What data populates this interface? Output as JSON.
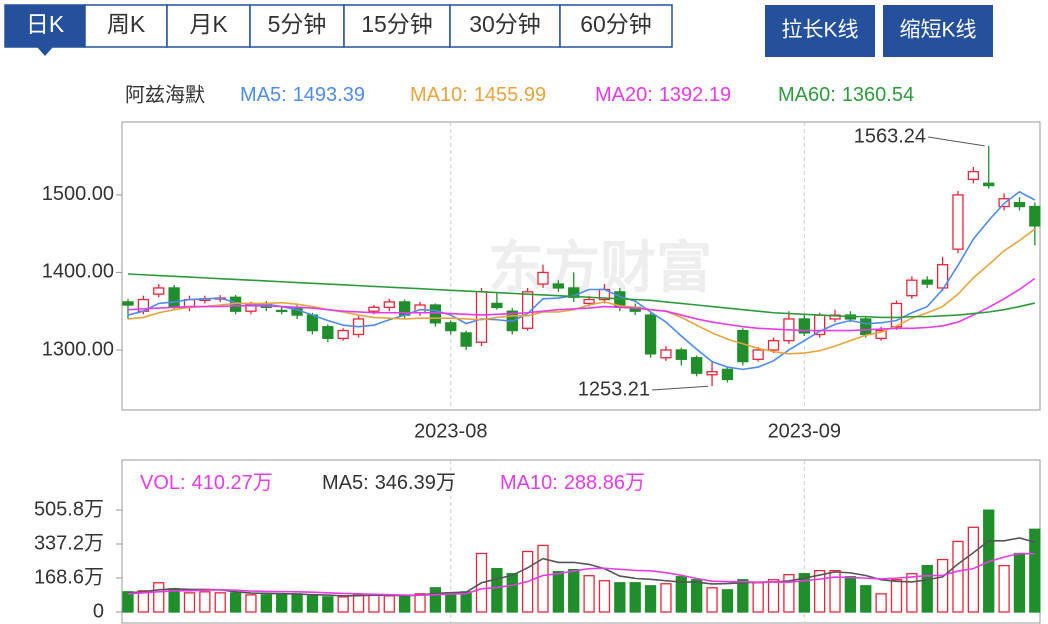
{
  "tabs": {
    "items": [
      "日K",
      "周K",
      "月K",
      "5分钟",
      "15分钟",
      "30分钟",
      "60分钟"
    ],
    "selected": 0
  },
  "buttons": [
    "拉长K线",
    "缩短K线"
  ],
  "watermark": "东方财富",
  "chart_data": [
    {
      "type": "candlestick",
      "title": "阿兹海默",
      "categories": [
        null,
        null,
        null,
        null,
        null,
        null,
        null,
        null,
        null,
        null,
        null,
        null,
        null,
        null,
        null,
        null,
        null,
        null,
        null,
        null,
        null,
        "2023-08",
        null,
        null,
        null,
        null,
        null,
        null,
        null,
        null,
        null,
        null,
        null,
        null,
        null,
        null,
        null,
        null,
        null,
        null,
        null,
        null,
        null,
        null,
        "2023-09",
        null,
        null,
        null,
        null,
        null,
        null,
        null,
        null,
        null,
        null,
        null,
        null,
        null,
        null,
        null
      ],
      "open": [
        1362,
        1350,
        1372,
        1380,
        1355,
        1364,
        1366,
        1368,
        1350,
        1360,
        1351,
        1355,
        1345,
        1330,
        1315,
        1320,
        1350,
        1355,
        1362,
        1348,
        1358,
        1335,
        1322,
        1310,
        1360,
        1350,
        1328,
        1385,
        1385,
        1380,
        1360,
        1365,
        1375,
        1355,
        1345,
        1290,
        1300,
        1290,
        1268,
        1275,
        1325,
        1288,
        1300,
        1312,
        1340,
        1320,
        1340,
        1345,
        1340,
        1315,
        1330,
        1370,
        1390,
        1380,
        1430,
        1520,
        1515,
        1485,
        1490,
        1485
      ],
      "high": [
        1366,
        1370,
        1385,
        1384,
        1370,
        1370,
        1371,
        1371,
        1362,
        1363,
        1356,
        1358,
        1348,
        1333,
        1328,
        1344,
        1358,
        1366,
        1365,
        1362,
        1360,
        1338,
        1325,
        1380,
        1375,
        1354,
        1380,
        1410,
        1390,
        1400,
        1370,
        1385,
        1380,
        1360,
        1348,
        1305,
        1303,
        1293,
        1285,
        1278,
        1328,
        1304,
        1316,
        1350,
        1345,
        1348,
        1352,
        1350,
        1343,
        1330,
        1364,
        1395,
        1395,
        1420,
        1505,
        1536,
        1563.24,
        1502,
        1497,
        1490
      ],
      "low": [
        1340,
        1346,
        1368,
        1352,
        1350,
        1360,
        1362,
        1346,
        1346,
        1350,
        1346,
        1340,
        1320,
        1310,
        1312,
        1316,
        1346,
        1350,
        1340,
        1344,
        1330,
        1320,
        1300,
        1305,
        1352,
        1320,
        1325,
        1380,
        1375,
        1362,
        1356,
        1360,
        1350,
        1345,
        1290,
        1286,
        1280,
        1266,
        1253.21,
        1258,
        1280,
        1285,
        1296,
        1308,
        1318,
        1316,
        1336,
        1336,
        1316,
        1312,
        1326,
        1366,
        1380,
        1376,
        1425,
        1515,
        1508,
        1480,
        1480,
        1435
      ],
      "close": [
        1358,
        1365,
        1380,
        1355,
        1365,
        1366,
        1367,
        1350,
        1358,
        1355,
        1350,
        1345,
        1325,
        1315,
        1325,
        1340,
        1355,
        1362,
        1345,
        1358,
        1335,
        1325,
        1305,
        1375,
        1355,
        1325,
        1375,
        1400,
        1380,
        1368,
        1365,
        1378,
        1355,
        1350,
        1295,
        1300,
        1288,
        1270,
        1272,
        1262,
        1285,
        1300,
        1312,
        1340,
        1322,
        1345,
        1345,
        1340,
        1320,
        1325,
        1360,
        1390,
        1385,
        1410,
        1500,
        1530,
        1512,
        1495,
        1485,
        1460
      ],
      "up_color": "#e8263a",
      "down_color": "#1f8e2b",
      "series": [
        {
          "name": "MA5:",
          "color": "#4e8bef",
          "values": [
            1345,
            1350,
            1360,
            1362,
            1365,
            1366,
            1367,
            1361,
            1359,
            1359,
            1356,
            1352,
            1345,
            1338,
            1332,
            1330,
            1332,
            1339,
            1345,
            1352,
            1351,
            1345,
            1334,
            1340,
            1339,
            1337,
            1347,
            1366,
            1367,
            1370,
            1378,
            1378,
            1369,
            1363,
            1349,
            1336,
            1318,
            1301,
            1285,
            1278,
            1275,
            1278,
            1286,
            1300,
            1312,
            1324,
            1333,
            1338,
            1334,
            1335,
            1338,
            1348,
            1356,
            1378,
            1409,
            1443,
            1467,
            1489,
            1504,
            1493.39
          ]
        },
        {
          "name": "MA10:",
          "color": "#e8a33d",
          "values": [
            1340,
            1342,
            1348,
            1352,
            1355,
            1356,
            1358,
            1360,
            1360,
            1360,
            1361,
            1359,
            1356,
            1352,
            1349,
            1345,
            1342,
            1341,
            1340,
            1341,
            1341,
            1341,
            1340,
            1339,
            1342,
            1344,
            1344,
            1349,
            1349,
            1352,
            1358,
            1362,
            1357,
            1355,
            1352,
            1350,
            1342,
            1332,
            1322,
            1314,
            1308,
            1302,
            1298,
            1295,
            1296,
            1299,
            1305,
            1312,
            1319,
            1323,
            1331,
            1341,
            1348,
            1356,
            1372,
            1393,
            1410,
            1428,
            1441,
            1455.99
          ]
        },
        {
          "name": "MA20:",
          "color": "#e63ce6",
          "values": [
            1352,
            1353,
            1354,
            1355,
            1356,
            1356,
            1356,
            1357,
            1357,
            1357,
            1356,
            1355,
            1354,
            1352,
            1350,
            1349,
            1348,
            1348,
            1348,
            1348,
            1348,
            1347,
            1346,
            1345,
            1346,
            1347,
            1348,
            1350,
            1352,
            1353,
            1354,
            1356,
            1355,
            1354,
            1352,
            1350,
            1345,
            1340,
            1336,
            1333,
            1330,
            1328,
            1327,
            1326,
            1325,
            1325,
            1325,
            1325,
            1326,
            1327,
            1328,
            1328,
            1329,
            1331,
            1336,
            1345,
            1355,
            1366,
            1378,
            1392.19
          ]
        },
        {
          "name": "MA60:",
          "color": "#2e9a3e",
          "values": [
            1398,
            1397,
            1396,
            1395,
            1394,
            1393,
            1392,
            1391,
            1390,
            1389,
            1388,
            1387,
            1386,
            1385,
            1384,
            1383,
            1382,
            1381,
            1380,
            1379,
            1378,
            1377,
            1376,
            1375,
            1374,
            1373,
            1372,
            1371,
            1370,
            1369,
            1368,
            1367,
            1366,
            1365,
            1364,
            1362,
            1360,
            1358,
            1356,
            1354,
            1352,
            1350,
            1348,
            1347,
            1346,
            1345,
            1344,
            1343,
            1343,
            1342,
            1342,
            1343,
            1343,
            1344,
            1345,
            1347,
            1349,
            1352,
            1356,
            1360.54
          ]
        }
      ],
      "ylim": [
        1222.6,
        1594
      ],
      "yticks": [
        {
          "value": 1300,
          "label": "1300.00"
        },
        {
          "value": 1400,
          "label": "1400.00"
        },
        {
          "value": 1500,
          "label": "1500.00"
        }
      ],
      "grid": true
    },
    {
      "type": "bar",
      "values": [
        100,
        105,
        145,
        115,
        95,
        100,
        95,
        95,
        85,
        85,
        90,
        90,
        80,
        75,
        75,
        85,
        85,
        80,
        75,
        90,
        120,
        95,
        100,
        290,
        215,
        190,
        300,
        330,
        200,
        210,
        180,
        155,
        145,
        145,
        130,
        140,
        175,
        160,
        120,
        110,
        160,
        145,
        160,
        185,
        190,
        205,
        205,
        175,
        130,
        90,
        160,
        190,
        230,
        260,
        350,
        420,
        505,
        230,
        290,
        410.27
      ],
      "legend": [
        {
          "name": "VOL:",
          "label": "410.27万"
        },
        {
          "name": "MA5:",
          "label": "346.39万"
        },
        {
          "name": "MA10:",
          "label": "288.86万"
        }
      ],
      "series": [
        {
          "name": "MA5:",
          "color": "#555555",
          "values": [
            95,
            100,
            110,
            115,
            112,
            112,
            110,
            100,
            94,
            92,
            91,
            89,
            86,
            84,
            80,
            81,
            83,
            84,
            80,
            84,
            92,
            96,
            98,
            145,
            164,
            182,
            219,
            265,
            246,
            246,
            236,
            215,
            178,
            167,
            162,
            155,
            149,
            148,
            139,
            141,
            145,
            147,
            149,
            154,
            168,
            183,
            199,
            194,
            181,
            160,
            152,
            149,
            160,
            174,
            238,
            294,
            353,
            353,
            367,
            346.39
          ]
        },
        {
          "name": "MA10:",
          "color": "#e63ce6",
          "values": [
            90,
            95,
            100,
            105,
            105,
            108,
            110,
            108,
            104,
            102,
            101,
            100,
            98,
            95,
            92,
            90,
            88,
            86,
            84,
            83,
            86,
            89,
            91,
            115,
            122,
            132,
            151,
            181,
            190,
            203,
            215,
            217,
            212,
            206,
            204,
            195,
            182,
            166,
            153,
            151,
            150,
            148,
            149,
            147,
            155,
            163,
            173,
            171,
            168,
            164,
            168,
            174,
            180,
            182,
            203,
            215,
            250,
            272,
            290,
            288.86
          ]
        }
      ],
      "legend_colors": [
        "#e63ce6",
        "#333333",
        "#e63ce6"
      ],
      "ylim": [
        0,
        743.8
      ],
      "yticks": [
        0,
        {
          "value": 168.6,
          "label": "168.6万"
        },
        {
          "value": 337.2,
          "label": "337.2万"
        },
        {
          "value": 505.8,
          "label": "505.8万"
        }
      ]
    }
  ]
}
